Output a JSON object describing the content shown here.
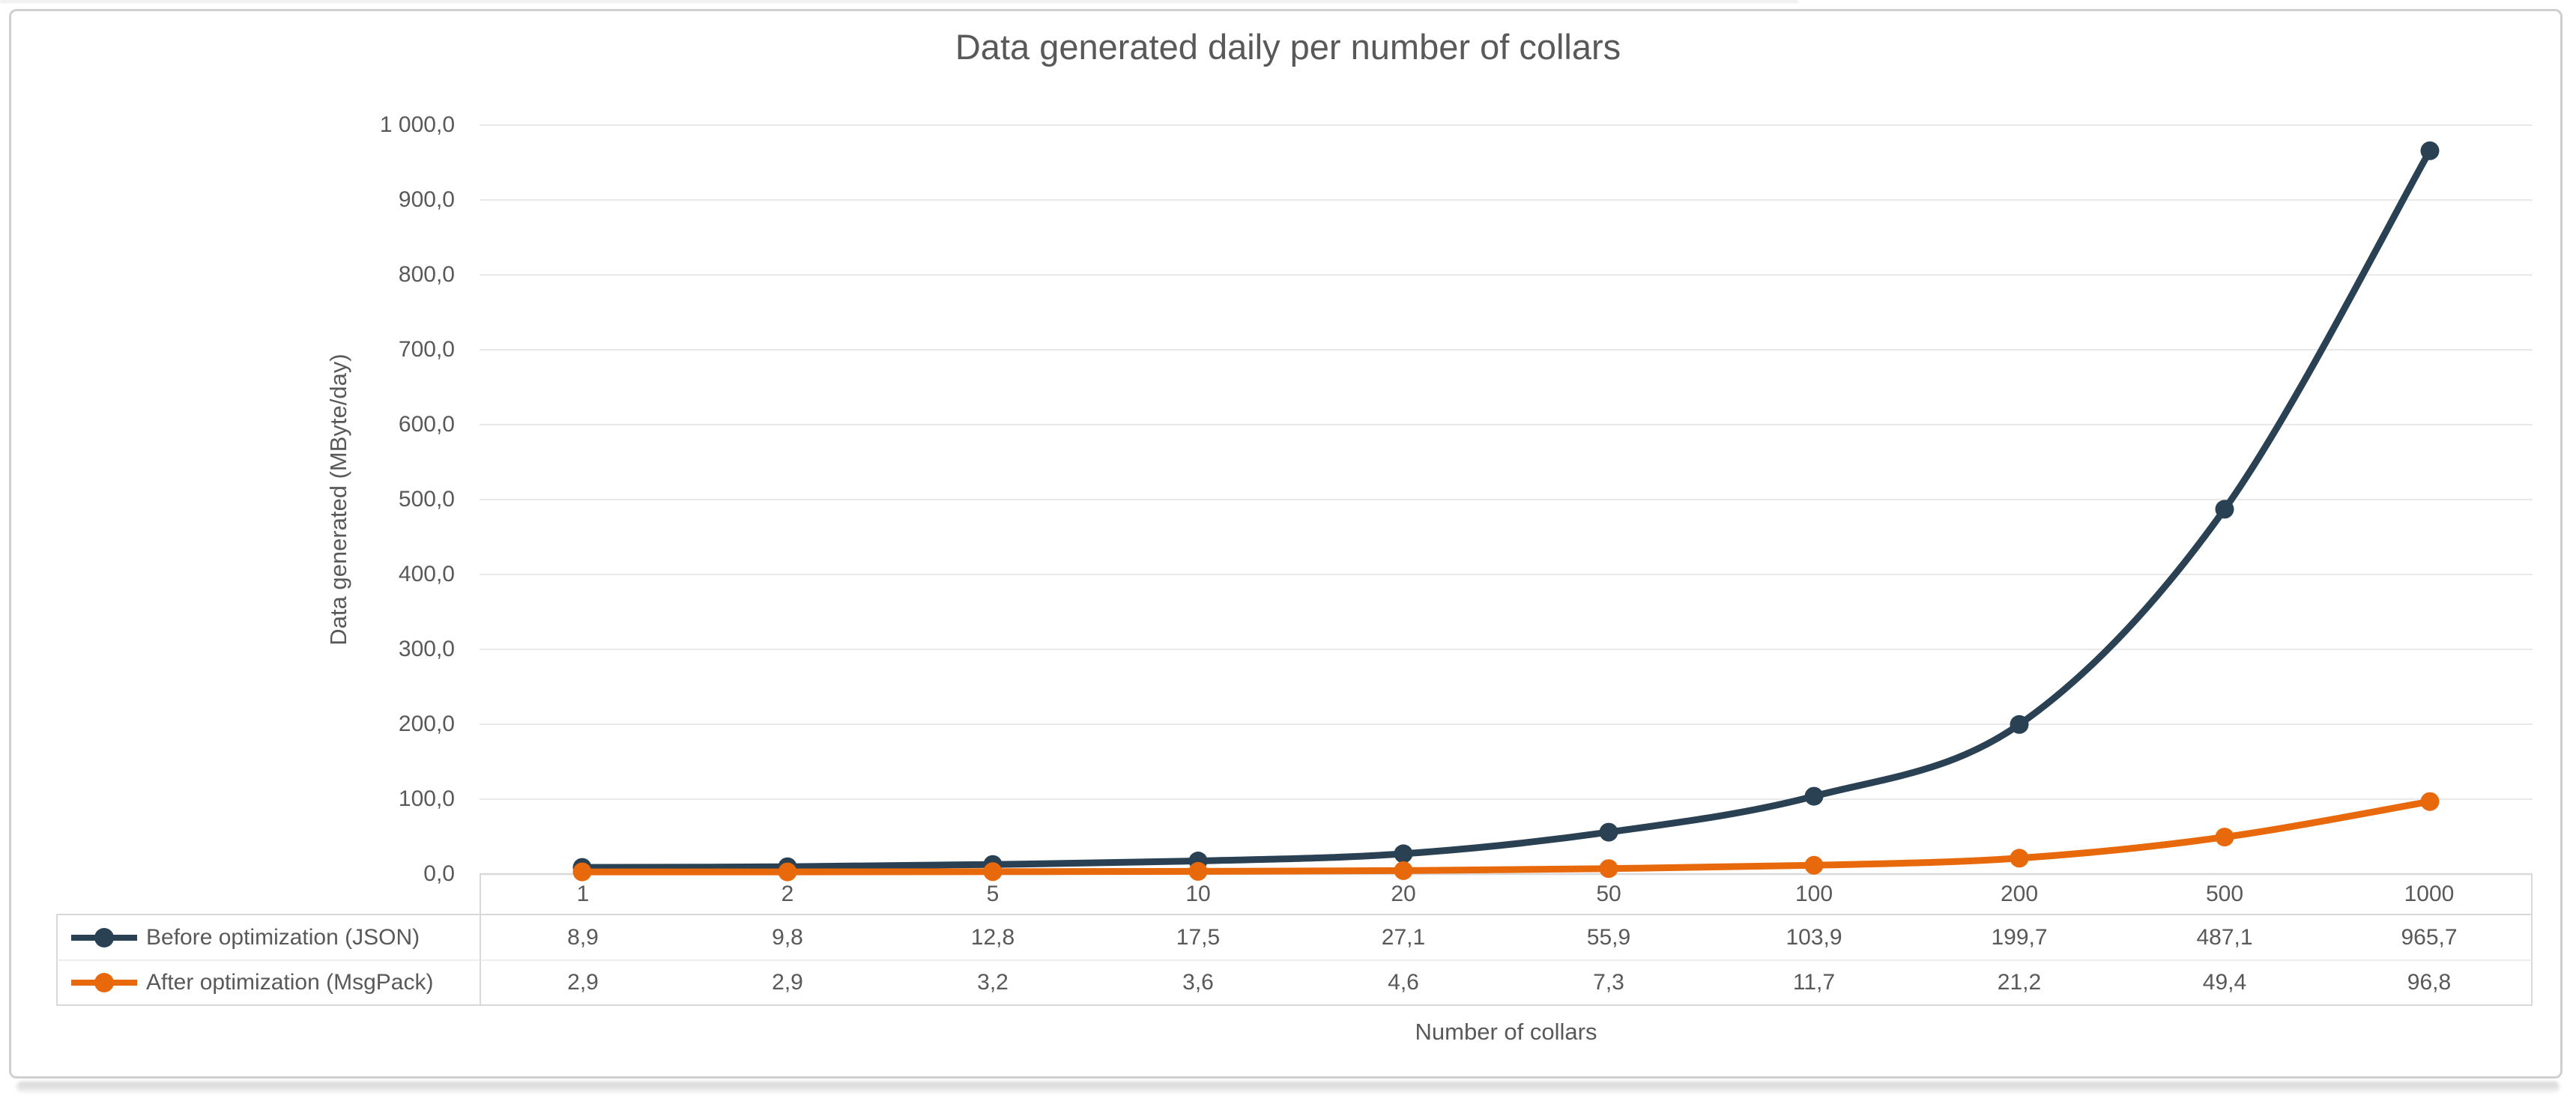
{
  "chart": {
    "title": "Data generated daily per number of collars",
    "y_axis_title": "Data generated (MByte/day)",
    "x_axis_title": "Number of collars"
  },
  "chart_data": {
    "type": "line",
    "title": "Data generated daily per number of collars",
    "xlabel": "Number of collars",
    "ylabel": "Data generated (MByte/day)",
    "categories": [
      "1",
      "2",
      "5",
      "10",
      "20",
      "50",
      "100",
      "200",
      "500",
      "1000"
    ],
    "series": [
      {
        "name": "Before optimization (JSON)",
        "color": "#2a4154",
        "values": [
          8.9,
          9.8,
          12.8,
          17.5,
          27.1,
          55.9,
          103.9,
          199.7,
          487.1,
          965.7
        ],
        "display": [
          "8,9",
          "9,8",
          "12,8",
          "17,5",
          "27,1",
          "55,9",
          "103,9",
          "199,7",
          "487,1",
          "965,7"
        ]
      },
      {
        "name": "After optimization (MsgPack)",
        "color": "#e8690b",
        "values": [
          2.9,
          2.9,
          3.2,
          3.6,
          4.6,
          7.3,
          11.7,
          21.2,
          49.4,
          96.8
        ],
        "display": [
          "2,9",
          "2,9",
          "3,2",
          "3,6",
          "4,6",
          "7,3",
          "11,7",
          "21,2",
          "49,4",
          "96,8"
        ]
      }
    ],
    "ylim": [
      0,
      1000
    ],
    "y_ticks": [
      {
        "value": 0,
        "label": "0,0"
      },
      {
        "value": 100,
        "label": "100,0"
      },
      {
        "value": 200,
        "label": "200,0"
      },
      {
        "value": 300,
        "label": "300,0"
      },
      {
        "value": 400,
        "label": "400,0"
      },
      {
        "value": 500,
        "label": "500,0"
      },
      {
        "value": 600,
        "label": "600,0"
      },
      {
        "value": 700,
        "label": "700,0"
      },
      {
        "value": 800,
        "label": "800,0"
      },
      {
        "value": 900,
        "label": "900,0"
      },
      {
        "value": 1000,
        "label": "1 000,0"
      }
    ],
    "grid": true,
    "legend_position": "data-table-left",
    "decimal_separator": ","
  },
  "colors": {
    "text": "#595959",
    "gridline": "#e9e9e9",
    "axis_line": "#d9d9d9",
    "table_border": "#d9d9d9",
    "row_separator": "#ededed",
    "series_before": "#2a4154",
    "series_after": "#e8690b"
  }
}
